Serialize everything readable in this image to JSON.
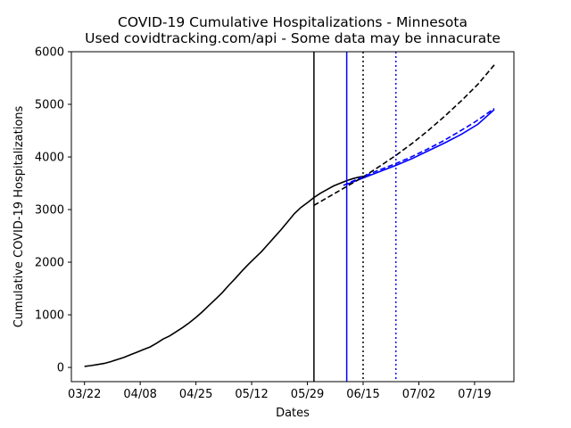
{
  "chart_data": {
    "type": "line",
    "title": "COVID-19 Cumulative Hospitalizations - Minnesota",
    "subtitle": "Used covidtracking.com/api - Some data may be innacurate",
    "xlabel": "Dates",
    "ylabel": "Cumulative COVID-19 Hospitalizations",
    "x_start": "03/22",
    "xlim": [
      "03/18",
      "07/31"
    ],
    "ylim": [
      -270,
      6000
    ],
    "x_ticks": [
      "03/22",
      "04/08",
      "04/25",
      "05/12",
      "05/29",
      "06/15",
      "07/02",
      "07/19"
    ],
    "y_ticks": [
      0,
      1000,
      2000,
      3000,
      4000,
      5000,
      6000
    ],
    "grid": false,
    "legend": "none",
    "series": [
      {
        "style": "solid",
        "color": "#000000",
        "x": [
          "03/22",
          "03/24",
          "03/26",
          "03/28",
          "03/30",
          "04/01",
          "04/03",
          "04/05",
          "04/07",
          "04/09",
          "04/11",
          "04/13",
          "04/15",
          "04/17",
          "04/19",
          "04/21",
          "04/23",
          "04/25",
          "04/27",
          "04/29",
          "05/01",
          "05/03",
          "05/05",
          "05/07",
          "05/09",
          "05/11",
          "05/13",
          "05/15",
          "05/17",
          "05/19",
          "05/21",
          "05/23",
          "05/25",
          "05/27",
          "05/29",
          "05/31",
          "06/02",
          "06/04",
          "06/06",
          "06/08",
          "06/10",
          "06/12",
          "06/14",
          "06/16"
        ],
        "y": [
          20,
          35,
          55,
          75,
          110,
          150,
          190,
          240,
          290,
          340,
          390,
          460,
          540,
          600,
          680,
          760,
          850,
          950,
          1060,
          1180,
          1300,
          1420,
          1560,
          1690,
          1830,
          1960,
          2080,
          2200,
          2340,
          2480,
          2620,
          2770,
          2920,
          3040,
          3130,
          3230,
          3310,
          3380,
          3450,
          3500,
          3550,
          3590,
          3620,
          3640
        ]
      },
      {
        "style": "solid",
        "color": "#0000ff",
        "x": [
          "06/10",
          "06/15",
          "06/20",
          "06/25",
          "06/30",
          "07/05",
          "07/10",
          "07/15",
          "07/20",
          "07/25"
        ],
        "y": [
          3480,
          3600,
          3720,
          3840,
          3970,
          4120,
          4270,
          4430,
          4620,
          4900
        ]
      },
      {
        "style": "dashed",
        "color": "#000000",
        "x": [
          "05/31",
          "06/05",
          "06/10",
          "06/15",
          "06/20",
          "06/25",
          "06/30",
          "07/05",
          "07/10",
          "07/15",
          "07/20",
          "07/25"
        ],
        "y": [
          3080,
          3260,
          3440,
          3620,
          3820,
          4030,
          4260,
          4510,
          4780,
          5070,
          5380,
          5750
        ]
      },
      {
        "style": "dashed",
        "color": "#0000ff",
        "x": [
          "06/09",
          "06/14",
          "06/19",
          "06/24",
          "06/29",
          "07/04",
          "07/09",
          "07/14",
          "07/19",
          "07/25"
        ],
        "y": [
          3460,
          3600,
          3730,
          3850,
          3980,
          4130,
          4290,
          4470,
          4660,
          4920
        ]
      }
    ],
    "vertical_lines": [
      {
        "x": "05/31",
        "style": "solid",
        "color": "#000000"
      },
      {
        "x": "06/10",
        "style": "solid",
        "color": "#0000ff"
      },
      {
        "x": "06/15",
        "style": "dotted",
        "color": "#000000"
      },
      {
        "x": "06/25",
        "style": "dotted",
        "color": "#0000ff"
      }
    ]
  }
}
